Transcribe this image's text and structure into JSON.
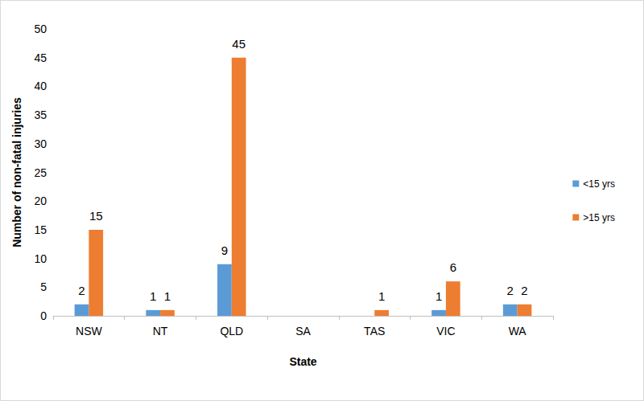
{
  "chart_data": {
    "type": "bar",
    "x_label": "State",
    "y_label": "Number of non-fatal injuries",
    "categories": [
      "NSW",
      "NT",
      "QLD",
      "SA",
      "TAS",
      "VIC",
      "WA"
    ],
    "series": [
      {
        "name": "<15 yrs",
        "color": "#5b9bd5",
        "values": [
          2,
          1,
          9,
          null,
          null,
          1,
          2
        ]
      },
      {
        "name": ">15 yrs",
        "color": "#ed7d31",
        "values": [
          15,
          1,
          45,
          null,
          1,
          6,
          2
        ]
      }
    ],
    "ylim": [
      0,
      50
    ],
    "yticks": [
      0,
      5,
      10,
      15,
      20,
      25,
      30,
      35,
      40,
      45,
      50
    ],
    "grid": false,
    "legend": "right",
    "data_labels": true
  }
}
